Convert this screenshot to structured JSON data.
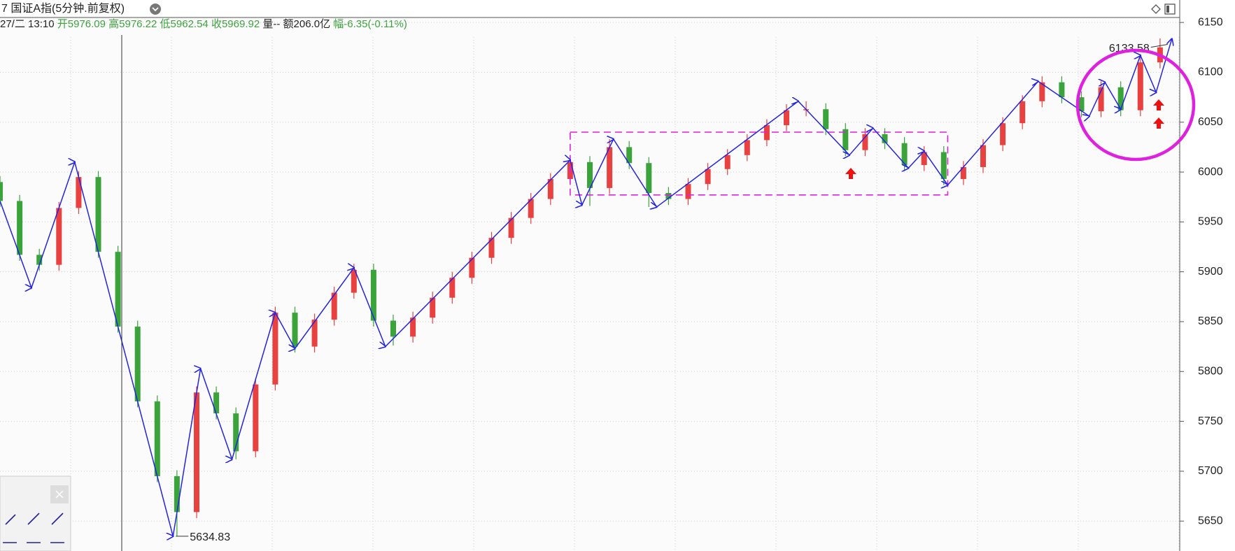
{
  "chart_data": {
    "type": "candlestick",
    "title": "7 国证A指(5分钟.前复权)",
    "info": {
      "time": "27/二 13:10",
      "open": "开5976.09",
      "high": "高5976.22",
      "low": "低5962.54",
      "close": "收5969.92",
      "volume": "量--",
      "amount": "额206.0亿",
      "change": "幅-6.35(-0.11%)"
    },
    "xlim": [
      0,
      300
    ],
    "ylim": [
      5620,
      6155
    ],
    "yticks": [
      5650,
      5700,
      5750,
      5800,
      5850,
      5900,
      5950,
      6000,
      6050,
      6100,
      6150
    ],
    "grid": true,
    "up_color": "#e8413f",
    "down_color": "#3aa33a",
    "x": [
      0,
      5,
      10,
      15,
      20,
      25,
      30,
      35,
      40,
      45,
      50,
      55,
      60,
      65,
      70,
      75,
      80,
      85,
      90,
      95,
      100,
      105,
      110,
      115,
      120,
      125,
      130,
      135,
      140,
      145,
      150,
      155,
      160,
      165,
      170,
      175,
      180,
      185,
      190,
      195,
      200,
      205,
      210,
      215,
      220,
      225,
      230,
      235,
      240,
      245,
      250,
      255,
      260,
      265,
      270,
      275,
      280,
      285,
      290,
      295
    ],
    "open": [
      5990,
      5971,
      5917,
      5907,
      5964,
      5995,
      5920,
      5845,
      5770,
      5695,
      5659,
      5779,
      5758,
      5720,
      5787,
      5859,
      5825,
      5852,
      5879,
      5902,
      5851,
      5835,
      5854,
      5874,
      5894,
      5914,
      5934,
      5954,
      5973,
      5993,
      6010,
      5984,
      6025,
      6009,
      5979,
      5973,
      5988,
      6003,
      6017,
      6032,
      6047,
      6062,
      6063,
      6043,
      6022,
      6038,
      6029,
      6007,
      6020,
      5993,
      6005,
      6027,
      6049,
      6071,
      6090,
      6075,
      6061,
      6085,
      6062,
      6110
    ],
    "high": [
      5996,
      5977,
      5923,
      5970,
      6001,
      6001,
      5926,
      5851,
      5776,
      5701,
      5785,
      5785,
      5764,
      5793,
      5865,
      5865,
      5858,
      5885,
      5908,
      5908,
      5857,
      5860,
      5880,
      5900,
      5920,
      5940,
      5960,
      5979,
      5999,
      6016,
      6016,
      6033,
      6031,
      6015,
      5985,
      5994,
      6009,
      6023,
      6038,
      6053,
      6068,
      6071,
      6069,
      6049,
      6044,
      6044,
      6035,
      6026,
      6026,
      6011,
      6033,
      6055,
      6077,
      6096,
      6096,
      6081,
      6091,
      6091,
      6117,
      6134
    ],
    "low": [
      5965,
      5911,
      5901,
      5901,
      5958,
      5914,
      5839,
      5764,
      5689,
      5635,
      5653,
      5752,
      5712,
      5714,
      5781,
      5819,
      5819,
      5846,
      5873,
      5845,
      5826,
      5829,
      5848,
      5868,
      5888,
      5908,
      5928,
      5948,
      5967,
      5987,
      5966,
      5978,
      6003,
      5965,
      5967,
      5967,
      5982,
      5997,
      6011,
      6026,
      6041,
      6056,
      6037,
      6016,
      6016,
      6023,
      6001,
      6001,
      5987,
      5987,
      5999,
      6021,
      6043,
      6065,
      6069,
      6055,
      6055,
      6056,
      6056,
      6104
    ],
    "close": [
      5971,
      5917,
      5907,
      5964,
      5995,
      5920,
      5845,
      5770,
      5695,
      5659,
      5779,
      5758,
      5720,
      5787,
      5859,
      5825,
      5852,
      5879,
      5902,
      5851,
      5835,
      5854,
      5874,
      5894,
      5914,
      5934,
      5954,
      5973,
      5993,
      6010,
      5984,
      6025,
      6009,
      5979,
      5973,
      5988,
      6003,
      6017,
      6032,
      6047,
      6062,
      6063,
      6043,
      6022,
      6038,
      6029,
      6007,
      6020,
      5993,
      6005,
      6027,
      6049,
      6071,
      6090,
      6075,
      6061,
      6085,
      6062,
      6110,
      6125
    ],
    "zigzag": {
      "color": "#2323e6",
      "x": [
        0,
        8,
        19,
        44,
        51,
        59,
        70,
        75,
        90,
        98,
        145,
        148,
        156,
        167,
        203,
        216,
        222,
        231,
        235,
        241,
        264,
        277,
        281,
        285,
        290,
        294,
        298
      ],
      "values": [
        5971,
        5884,
        6010,
        5634.83,
        5803,
        5712,
        5859,
        5823,
        5904,
        5825,
        6012,
        5967,
        6033,
        5965,
        6071,
        6017,
        6044,
        6004,
        6021,
        5987,
        6091,
        6056,
        6090,
        6063,
        6117,
        6080,
        6133.58
      ]
    },
    "annotations": [
      "5634.83",
      "6133.58"
    ],
    "range_box": {
      "color": "#e020e0",
      "xlim": [
        145,
        241
      ],
      "ylim": [
        5977,
        6040
      ]
    }
  }
}
